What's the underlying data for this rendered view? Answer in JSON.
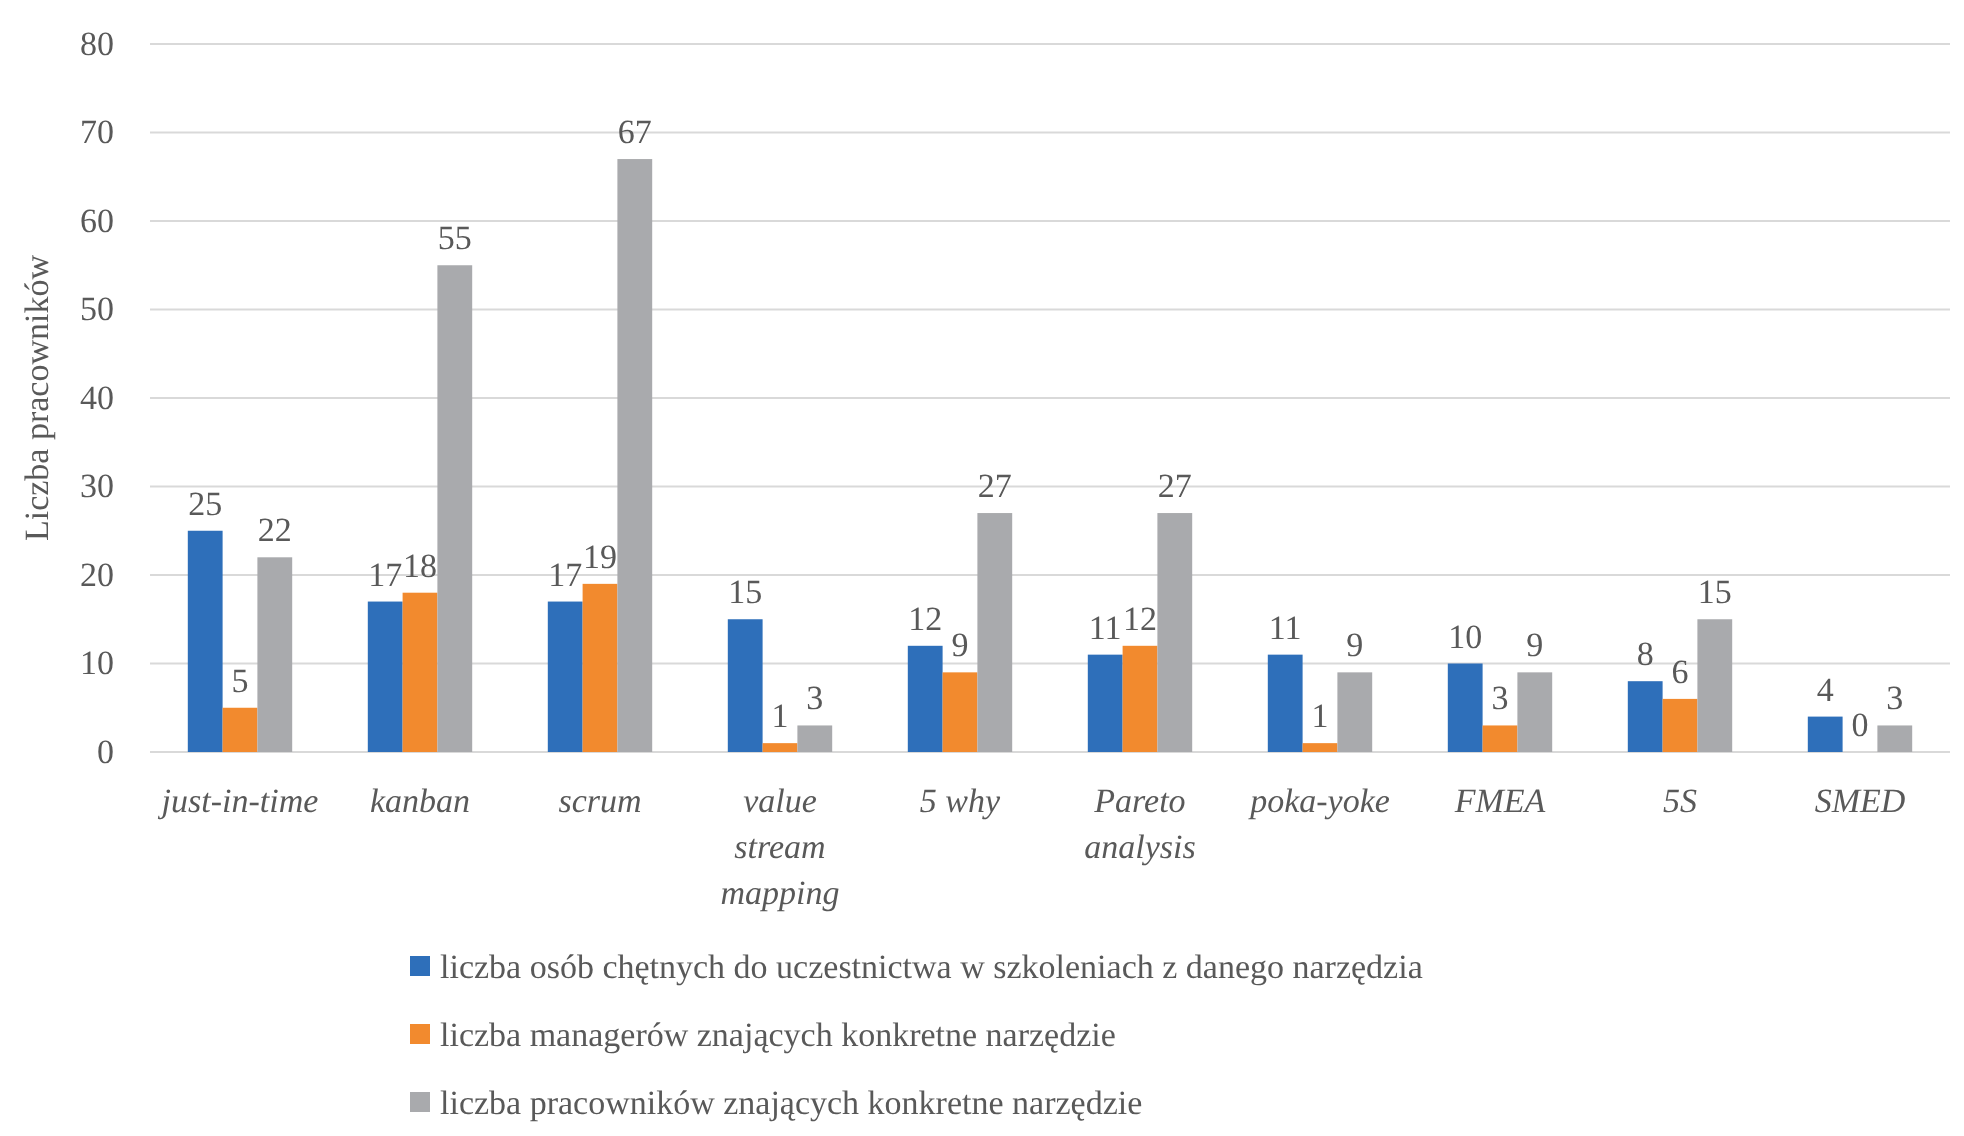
{
  "chart_data": {
    "type": "bar",
    "ylabel": "Liczba pracowników",
    "categories": [
      "just-in-time",
      "kanban",
      "scrum",
      "value stream mapping",
      "5 why",
      "Pareto analysis",
      "poka-yoke",
      "FMEA",
      "5S",
      "SMED"
    ],
    "series": [
      {
        "name": "liczba osób chętnych do uczestnictwa w szkoleniach z danego narzędzia",
        "color": "#2e6fba",
        "values": [
          25,
          17,
          17,
          15,
          12,
          11,
          11,
          10,
          8,
          4
        ]
      },
      {
        "name": "liczba managerów znających konkretne narzędzie",
        "color": "#f28a2e",
        "values": [
          5,
          18,
          19,
          1,
          9,
          12,
          1,
          3,
          6,
          0
        ]
      },
      {
        "name": "liczba pracowników znających konkretne narzędzie",
        "color": "#a9aaad",
        "values": [
          22,
          55,
          67,
          3,
          27,
          27,
          9,
          9,
          15,
          3
        ]
      }
    ],
    "ylim": [
      0,
      80
    ],
    "yticks": [
      0,
      10,
      20,
      30,
      40,
      50,
      60,
      70,
      80
    ],
    "grid": "y",
    "data_labels": true,
    "legend": "bottom"
  }
}
